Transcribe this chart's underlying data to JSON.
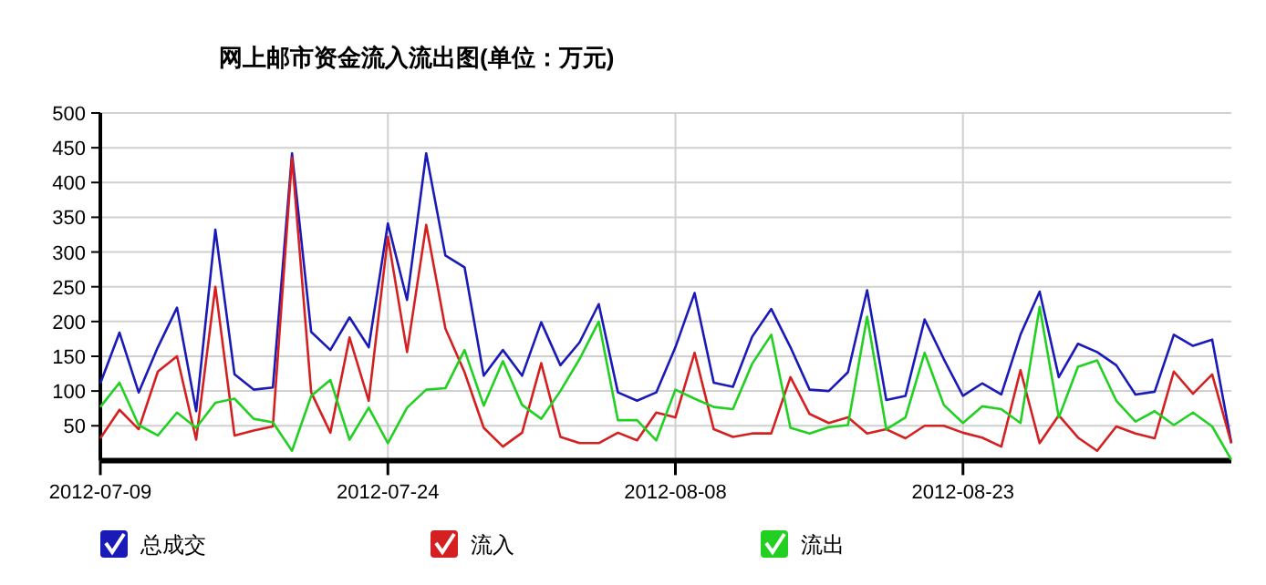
{
  "chart_data": {
    "type": "line",
    "title": "网上邮市资金流入流出图(单位：万元)",
    "x": [
      "2012-07-09",
      "2012-07-10",
      "2012-07-11",
      "2012-07-12",
      "2012-07-13",
      "2012-07-14",
      "2012-07-15",
      "2012-07-16",
      "2012-07-17",
      "2012-07-18",
      "2012-07-19",
      "2012-07-20",
      "2012-07-21",
      "2012-07-22",
      "2012-07-23",
      "2012-07-24",
      "2012-07-25",
      "2012-07-26",
      "2012-07-27",
      "2012-07-28",
      "2012-07-29",
      "2012-07-30",
      "2012-07-31",
      "2012-08-01",
      "2012-08-02",
      "2012-08-03",
      "2012-08-04",
      "2012-08-05",
      "2012-08-06",
      "2012-08-07",
      "2012-08-08",
      "2012-08-09",
      "2012-08-10",
      "2012-08-11",
      "2012-08-12",
      "2012-08-13",
      "2012-08-14",
      "2012-08-15",
      "2012-08-16",
      "2012-08-17",
      "2012-08-18",
      "2012-08-19",
      "2012-08-20",
      "2012-08-21",
      "2012-08-22",
      "2012-08-23",
      "2012-08-24",
      "2012-08-25",
      "2012-08-26",
      "2012-08-27",
      "2012-08-28",
      "2012-08-29",
      "2012-08-30",
      "2012-08-31",
      "2012-09-01",
      "2012-09-02",
      "2012-09-03",
      "2012-09-04",
      "2012-09-05",
      "2012-09-06"
    ],
    "series": [
      {
        "name": "总成交",
        "color": "#1a1ab8",
        "values": [
          111,
          184,
          98,
          163,
          220,
          71,
          332,
          124,
          102,
          105,
          442,
          185,
          159,
          206,
          163,
          341,
          231,
          442,
          295,
          278,
          122,
          159,
          122,
          199,
          137,
          170,
          225,
          98,
          86,
          98,
          163,
          241,
          112,
          106,
          178,
          218,
          163,
          102,
          100,
          127,
          245,
          87,
          93,
          203,
          146,
          93,
          111,
          95,
          181,
          243,
          120,
          168,
          156,
          137,
          95,
          99,
          181,
          165,
          174,
          25
        ]
      },
      {
        "name": "流入",
        "color": "#d42020",
        "values": [
          32,
          73,
          45,
          128,
          150,
          30,
          250,
          36,
          43,
          49,
          436,
          98,
          40,
          177,
          86,
          322,
          156,
          339,
          190,
          127,
          47,
          20,
          40,
          140,
          34,
          25,
          25,
          40,
          29,
          69,
          62,
          155,
          45,
          34,
          39,
          39,
          120,
          67,
          54,
          62,
          39,
          45,
          32,
          50,
          50,
          40,
          33,
          20,
          130,
          25,
          65,
          33,
          14,
          49,
          39,
          32,
          128,
          96,
          124,
          25
        ]
      },
      {
        "name": "流出",
        "color": "#22d022",
        "values": [
          77,
          112,
          51,
          36,
          69,
          47,
          83,
          89,
          60,
          55,
          14,
          93,
          116,
          30,
          76,
          25,
          76,
          102,
          104,
          159,
          79,
          143,
          80,
          60,
          100,
          146,
          200,
          58,
          58,
          29,
          102,
          89,
          77,
          74,
          139,
          181,
          47,
          39,
          48,
          51,
          207,
          45,
          62,
          155,
          80,
          54,
          78,
          74,
          54,
          221,
          62,
          135,
          144,
          86,
          56,
          71,
          51,
          69,
          49,
          1
        ]
      }
    ],
    "xlim": [
      "2012-07-09",
      "2012-09-06"
    ],
    "xticks": [
      "2012-07-09",
      "2012-07-24",
      "2012-08-08",
      "2012-08-23"
    ],
    "ylim": [
      0,
      500
    ],
    "yticks": [
      50,
      100,
      150,
      200,
      250,
      300,
      350,
      400,
      450,
      500
    ],
    "grid": true,
    "legend": "bottom",
    "marker": "none",
    "line_style": "solid"
  }
}
